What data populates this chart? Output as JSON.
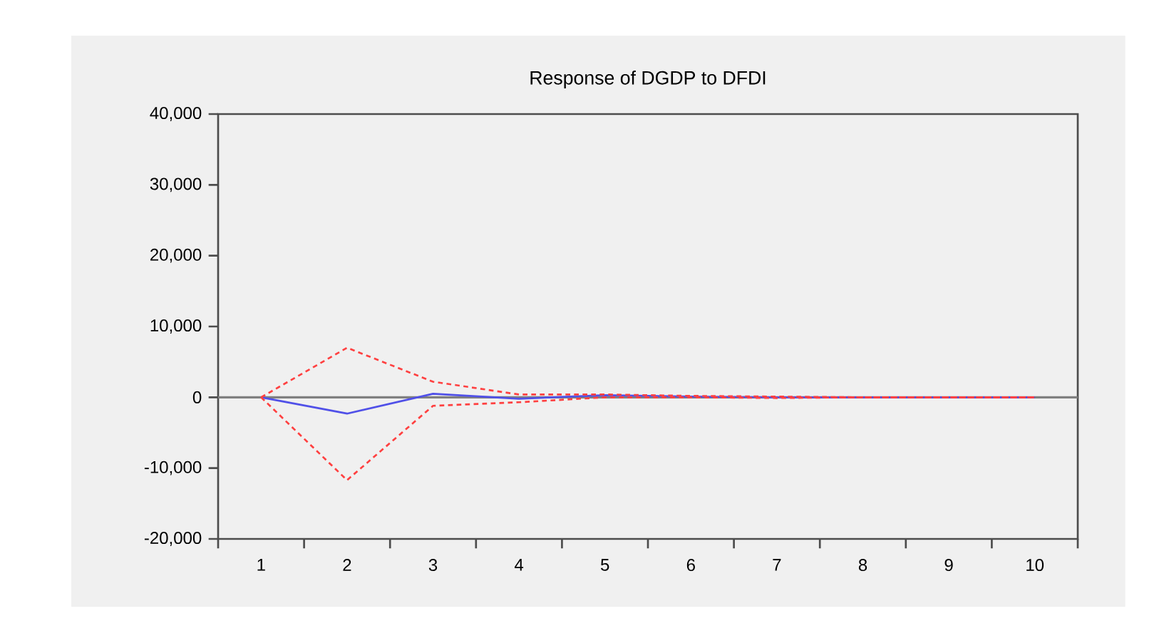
{
  "chart_data": {
    "type": "line",
    "title": "Response of DGDP to DFDI",
    "categories": [
      "1",
      "2",
      "3",
      "4",
      "5",
      "6",
      "7",
      "8",
      "9",
      "10"
    ],
    "series": [
      {
        "color": "#5050e8",
        "line_style": "solid",
        "values": [
          0,
          -2300,
          500,
          -200,
          300,
          100,
          0,
          0,
          0,
          0
        ]
      },
      {
        "color": "#ff4040",
        "line_style": "dashed",
        "values": [
          0,
          7000,
          2200,
          400,
          400,
          200,
          100,
          0,
          0,
          0
        ]
      },
      {
        "color": "#ff4040",
        "line_style": "dashed",
        "values": [
          0,
          -11700,
          -1200,
          -700,
          0,
          0,
          -100,
          0,
          0,
          0
        ]
      }
    ],
    "ylim": [
      -20000,
      40000
    ],
    "yticks": [
      {
        "value": -20000,
        "label": "-20,000"
      },
      {
        "value": -10000,
        "label": "-10,000"
      },
      {
        "value": 0,
        "label": "0"
      },
      {
        "value": 10000,
        "label": "10,000"
      },
      {
        "value": 20000,
        "label": "20,000"
      },
      {
        "value": 30000,
        "label": "30,000"
      },
      {
        "value": 40000,
        "label": "40,000"
      }
    ],
    "ref_lines": [
      {
        "axis": "y",
        "value": 0,
        "color": "#808080"
      }
    ],
    "grid": false,
    "marker": "none"
  }
}
